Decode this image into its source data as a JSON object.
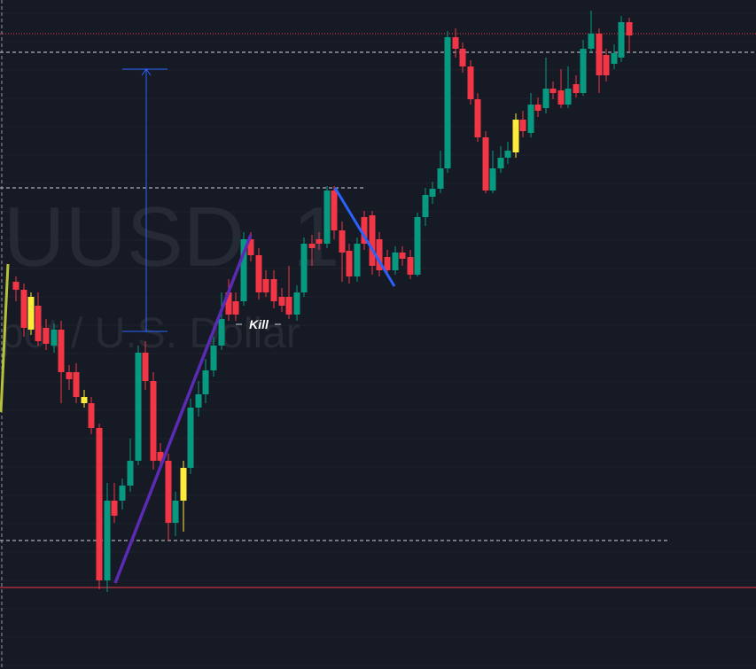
{
  "watermark": {
    "symbol": "UUSD",
    "interval": "1",
    "description": "pot / U.S. Dollar"
  },
  "annotation": {
    "label": "Kill"
  }
}
